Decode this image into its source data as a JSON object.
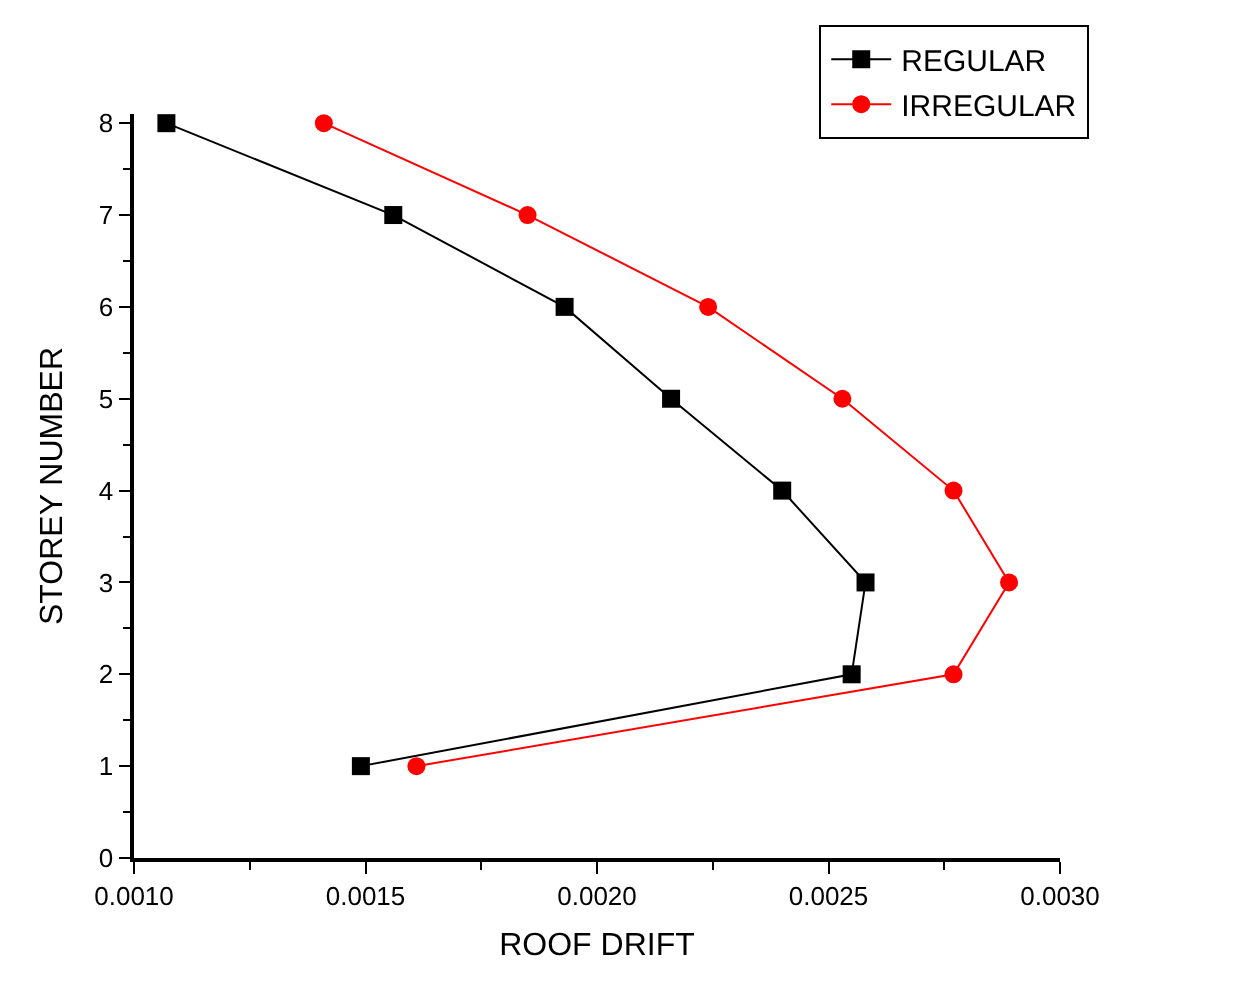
{
  "chart_data": {
    "type": "line",
    "xlabel": "ROOF DRIFT",
    "ylabel": "STOREY NUMBER",
    "series": [
      {
        "name": "REGULAR",
        "color": "#000000",
        "marker": "square",
        "x": [
          0.00149,
          0.00255,
          0.00258,
          0.0024,
          0.00216,
          0.00193,
          0.00156,
          0.00107
        ],
        "values": [
          1,
          2,
          3,
          4,
          5,
          6,
          7,
          8
        ]
      },
      {
        "name": "IRREGULAR",
        "color": "#ff0000",
        "marker": "circle",
        "x": [
          0.00161,
          0.00277,
          0.00289,
          0.00277,
          0.00253,
          0.00224,
          0.00185,
          0.00141
        ],
        "values": [
          1,
          2,
          3,
          4,
          5,
          6,
          7,
          8
        ]
      }
    ],
    "xlim": [
      0.001,
      0.003
    ],
    "xticks": [
      {
        "value": 0.001,
        "label": "0.0010"
      },
      {
        "value": 0.0015,
        "label": "0.0015"
      },
      {
        "value": 0.002,
        "label": "0.0020"
      },
      {
        "value": 0.0025,
        "label": "0.0025"
      },
      {
        "value": 0.003,
        "label": "0.0030"
      }
    ],
    "ylim": [
      0,
      8.1
    ],
    "yticks": [
      0,
      1,
      2,
      3,
      4,
      5,
      6,
      7,
      8
    ],
    "grid": false,
    "legend": "top right",
    "line_style": "solid"
  }
}
